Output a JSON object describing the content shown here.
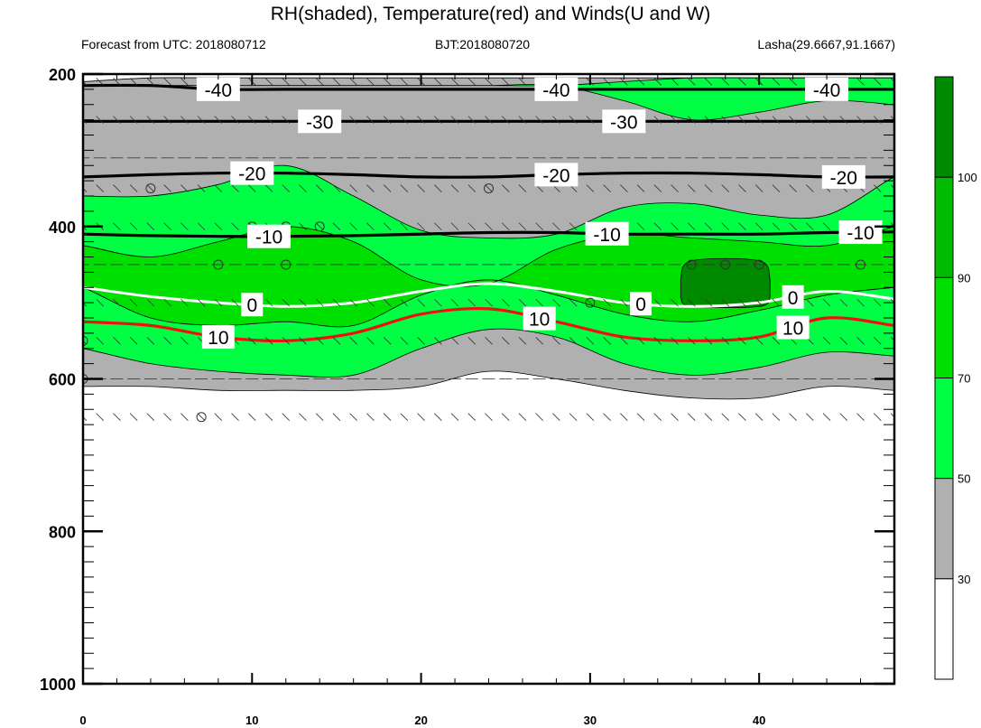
{
  "title": "RH(shaded), Temperature(red) and Winds(U and W)",
  "subtitle_left": "Forecast from UTC: 2018080712",
  "subtitle_center": "BJT:2018080720",
  "subtitle_right": "Lasha(29.6667,91.1667)",
  "chart_data": {
    "type": "contour",
    "x_ticks": [
      0,
      10,
      20,
      30,
      40
    ],
    "xlim": [
      0,
      48
    ],
    "y_ticks": [
      200,
      400,
      600,
      800,
      1000
    ],
    "ylim": [
      1000,
      200
    ],
    "y_reversed": true,
    "x_values": [
      0,
      4,
      8,
      12,
      16,
      20,
      24,
      28,
      32,
      36,
      40,
      44,
      48
    ],
    "colorbar": {
      "levels": [
        30,
        50,
        70,
        90,
        100
      ],
      "colors": [
        "#ffffff",
        "#b0b0b0",
        "#00ff44",
        "#00e000",
        "#00bb00",
        "#008a00"
      ]
    },
    "rh_fields": [
      {
        "name": "rh_above_30",
        "color": "#b0b0b0",
        "top": [
          210,
          205,
          205,
          205,
          205,
          205,
          205,
          205,
          205,
          205,
          205,
          205,
          205
        ],
        "bottom": [
          610,
          610,
          615,
          615,
          615,
          610,
          590,
          600,
          615,
          625,
          625,
          610,
          615
        ]
      },
      {
        "name": "rh_above_50_lower",
        "color": "#00ff44",
        "top": [
          360,
          360,
          345,
          320,
          360,
          405,
          415,
          410,
          375,
          370,
          385,
          385,
          335
        ],
        "bottom": [
          560,
          580,
          590,
          595,
          595,
          560,
          535,
          545,
          580,
          595,
          585,
          565,
          570
        ]
      },
      {
        "name": "rh_above_50_upper",
        "color": "#00ff44",
        "top": [
          215,
          215,
          215,
          215,
          215,
          215,
          215,
          215,
          210,
          205,
          205,
          205,
          205
        ],
        "bottom": [
          215,
          215,
          215,
          215,
          215,
          215,
          215,
          215,
          235,
          260,
          250,
          235,
          240
        ]
      },
      {
        "name": "rh_above_70",
        "color": "#00e000",
        "top": [
          425,
          440,
          420,
          400,
          420,
          470,
          475,
          430,
          410,
          415,
          420,
          425,
          400
        ],
        "bottom": [
          480,
          520,
          530,
          525,
          530,
          490,
          470,
          490,
          515,
          525,
          510,
          490,
          480
        ]
      },
      {
        "name": "rh_above_90",
        "color": "#008a00",
        "top": [
          null,
          null,
          null,
          null,
          null,
          null,
          null,
          null,
          null,
          445,
          445,
          null,
          null
        ],
        "bottom": [
          null,
          null,
          null,
          null,
          null,
          null,
          null,
          null,
          null,
          505,
          505,
          null,
          null
        ]
      }
    ],
    "temperature_contours": [
      {
        "level": "-40",
        "values": [
          215,
          215,
          220,
          220,
          220,
          220,
          220,
          220,
          220,
          220,
          220,
          220,
          220
        ]
      },
      {
        "level": "-30",
        "values": [
          262,
          262,
          262,
          262,
          262,
          262,
          262,
          262,
          262,
          262,
          262,
          262,
          262
        ]
      },
      {
        "level": "-20",
        "values": [
          335,
          332,
          330,
          330,
          332,
          335,
          335,
          332,
          330,
          330,
          332,
          335,
          335
        ]
      },
      {
        "level": "-10",
        "values": [
          410,
          412,
          413,
          413,
          412,
          410,
          408,
          408,
          410,
          410,
          410,
          408,
          407
        ]
      },
      {
        "level": "0",
        "values": [
          480,
          492,
          500,
          505,
          500,
          485,
          475,
          485,
          500,
          505,
          500,
          485,
          495
        ]
      },
      {
        "level": "10",
        "values": [
          525,
          530,
          545,
          550,
          540,
          515,
          508,
          525,
          545,
          550,
          545,
          520,
          530
        ]
      }
    ],
    "contour_labels": [
      "-40",
      "-30",
      "-20",
      "-10",
      "0",
      "10"
    ],
    "wind_levels": [
      210,
      260,
      310,
      350,
      400,
      450,
      500,
      550,
      600,
      650
    ]
  }
}
